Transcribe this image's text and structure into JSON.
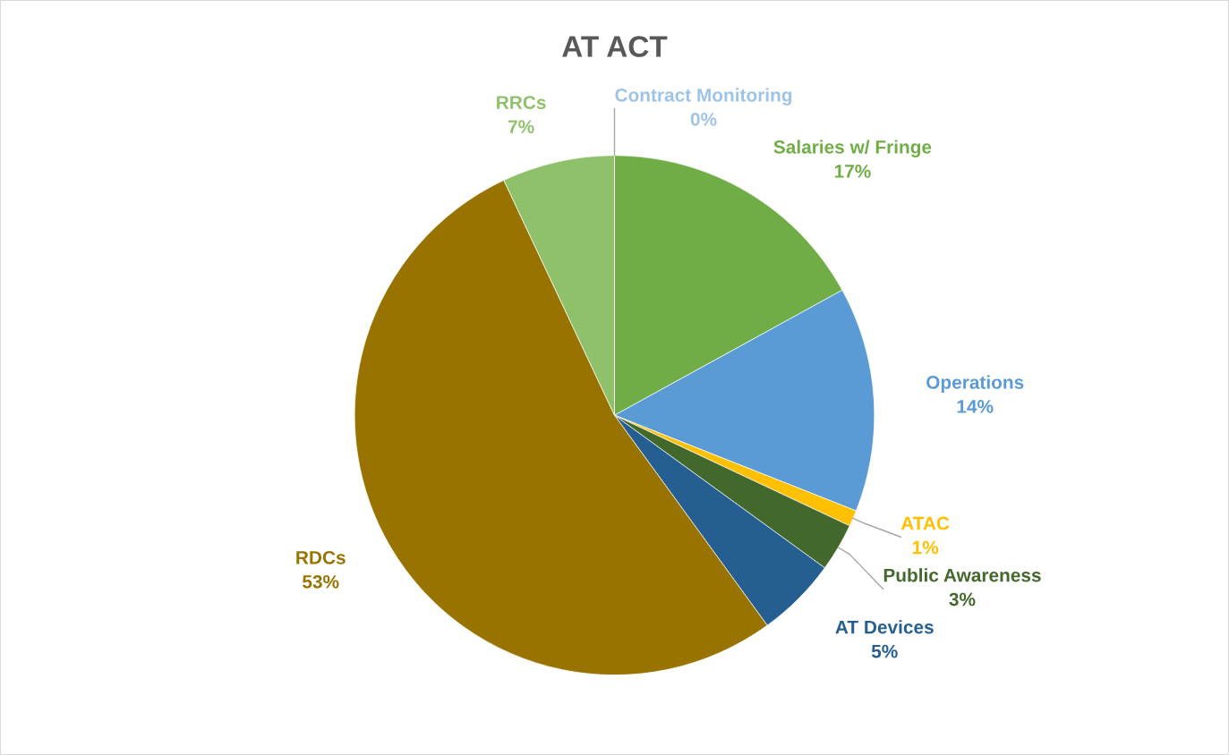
{
  "chart_data": {
    "type": "pie",
    "title": "AT ACT",
    "categories": [
      "Salaries w/ Fringe",
      "Operations",
      "ATAC",
      "Public Awareness",
      "AT Devices",
      "RDCs",
      "RRCs",
      "Contract Monitoring"
    ],
    "values": [
      17,
      14,
      1,
      3,
      5,
      53,
      7,
      0
    ],
    "colors": [
      "#70ad47",
      "#5b9bd5",
      "#ffc000",
      "#43682b",
      "#255e91",
      "#997300",
      "#8fc16a",
      "#9dc3e6"
    ],
    "value_labels": [
      "17%",
      "14%",
      "1%",
      "3%",
      "5%",
      "53%",
      "7%",
      "0%"
    ],
    "legend": false
  }
}
